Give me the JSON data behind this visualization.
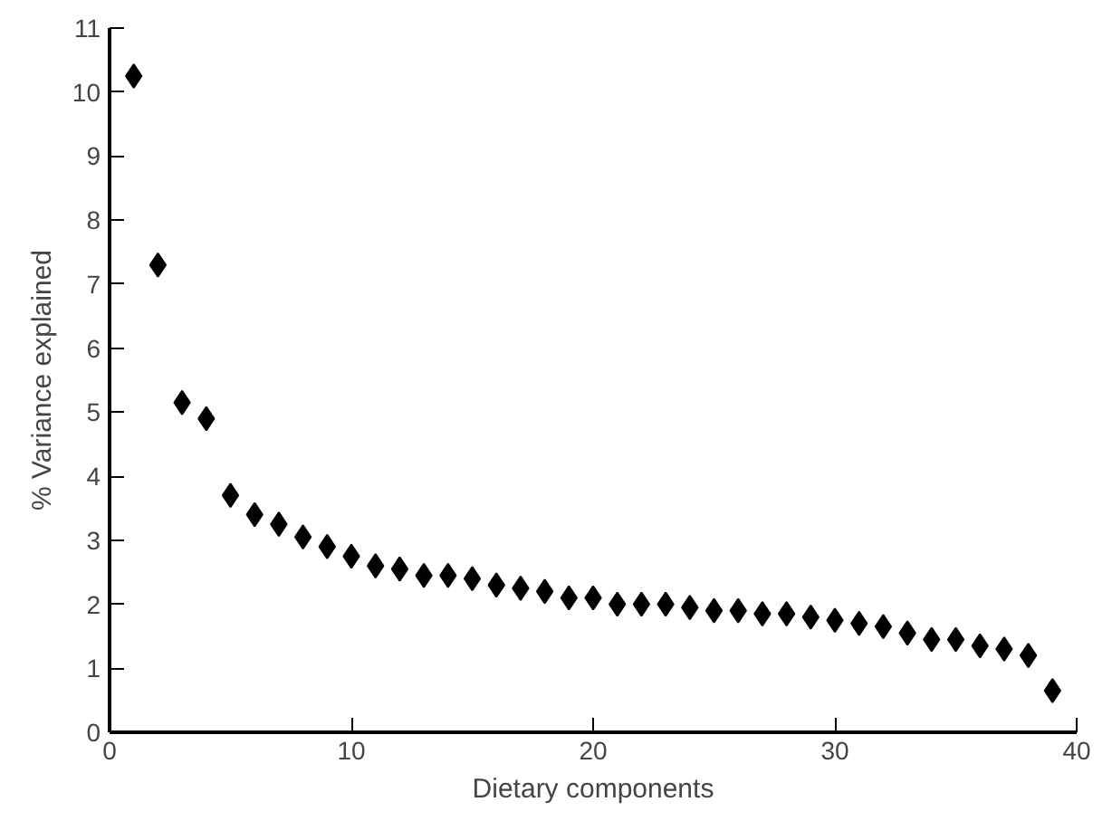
{
  "chart_data": {
    "type": "scatter",
    "xlabel": "Dietary components",
    "ylabel": "% Variance explained",
    "x": [
      1,
      2,
      3,
      4,
      5,
      6,
      7,
      8,
      9,
      10,
      11,
      12,
      13,
      14,
      15,
      16,
      17,
      18,
      19,
      20,
      21,
      22,
      23,
      24,
      25,
      26,
      27,
      28,
      29,
      30,
      31,
      32,
      33,
      34,
      35,
      36,
      37,
      38,
      39
    ],
    "series": [
      {
        "color": "#000000",
        "values": [
          10.25,
          7.3,
          5.15,
          4.9,
          3.7,
          3.4,
          3.25,
          3.05,
          2.9,
          2.75,
          2.6,
          2.55,
          2.45,
          2.45,
          2.4,
          2.3,
          2.25,
          2.2,
          2.1,
          2.1,
          2.0,
          2.0,
          2.0,
          1.95,
          1.9,
          1.9,
          1.85,
          1.85,
          1.8,
          1.75,
          1.7,
          1.65,
          1.55,
          1.45,
          1.45,
          1.35,
          1.3,
          1.2,
          0.65
        ]
      }
    ],
    "xlim": [
      0,
      40
    ],
    "xticks": [
      0,
      10,
      20,
      30,
      40
    ],
    "ylim": [
      0,
      11
    ],
    "yticks": [
      0,
      1,
      2,
      3,
      4,
      5,
      6,
      7,
      8,
      9,
      10,
      11
    ],
    "marker": "diamond",
    "grid": false
  }
}
